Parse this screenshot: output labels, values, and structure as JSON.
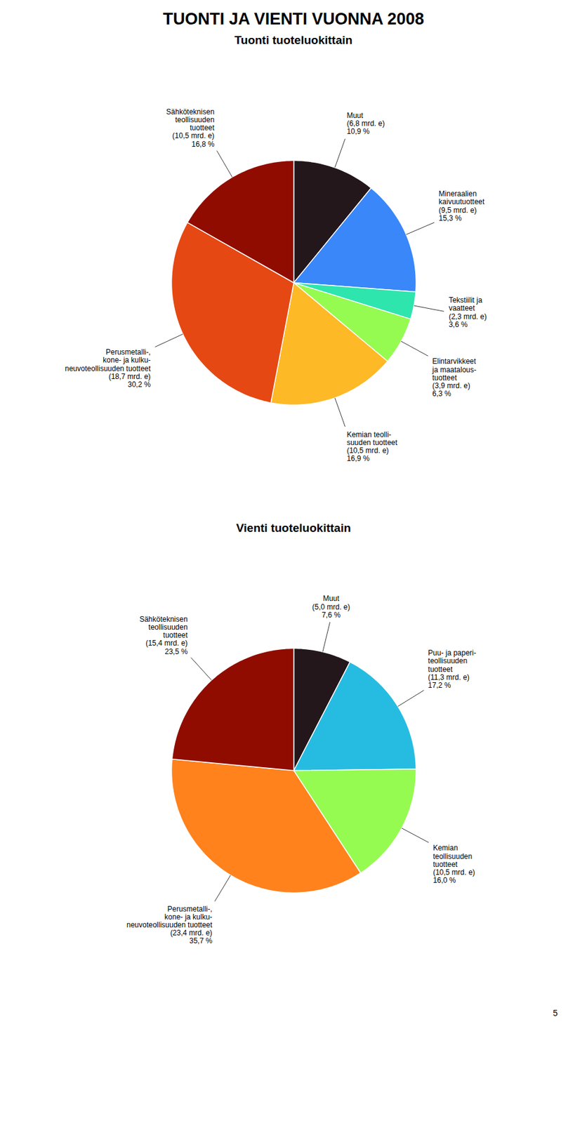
{
  "title": "TUONTI JA VIENTI VUONNA 2008",
  "annotations": [
    "5"
  ],
  "chart_data": [
    {
      "type": "pie",
      "title": "Tuonti tuoteluokittain",
      "categories": [
        "Muut",
        "Mineraalien\nkaivuutuotteet",
        "Tekstiilit ja\nvaatteet",
        "Elintarvikkeet\nja maatalous-\ntuotteet",
        "Kemian teolli-\nsuuden tuotteet",
        "Perusmetalli-,\nkone- ja kulku-\nneuvoteollisuuden tuotteet",
        "Sähköteknisen\nteollisuuden\ntuotteet"
      ],
      "values": [
        10.9,
        15.3,
        3.6,
        6.3,
        16.9,
        30.2,
        16.8
      ],
      "value_labels": [
        "10,9 %",
        "15,3 %",
        "3,6 %",
        "6,3 %",
        "16,9 %",
        "30,2 %",
        "16,8 %"
      ],
      "amounts": [
        6.8,
        9.5,
        2.3,
        3.9,
        10.5,
        18.7,
        10.5
      ],
      "amount_labels": [
        "(6,8 mrd. e)",
        "(9,5 mrd. e)",
        "(2,3 mrd. e)",
        "(3,9 mrd. e)",
        "(10,5 mrd. e)",
        "(18,7 mrd. e)",
        "(10,5 mrd. e)"
      ]
    },
    {
      "type": "pie",
      "title": "Vienti tuoteluokittain",
      "categories": [
        "Muut",
        "Puu- ja paperi-\nteollisuuden\ntuotteet",
        "Kemian\nteollisuuden\ntuotteet",
        "Perusmetalli-,\nkone- ja kulku-\nneuvoteollisuuden tuotteet",
        "Sähköteknisen\nteollisuuden\ntuotteet"
      ],
      "values": [
        7.6,
        17.2,
        16.0,
        35.7,
        23.5
      ],
      "value_labels": [
        "7,6 %",
        "17,2 %",
        "16,0 %",
        "35,7 %",
        "23,5 %"
      ],
      "amounts": [
        5.0,
        11.3,
        10.5,
        23.4,
        15.4
      ],
      "amount_labels": [
        "(5,0 mrd. e)",
        "(11,3 mrd. e)",
        "(10,5 mrd. e)",
        "(23,4 mrd. e)",
        "(15,4 mrd. e)"
      ]
    }
  ]
}
